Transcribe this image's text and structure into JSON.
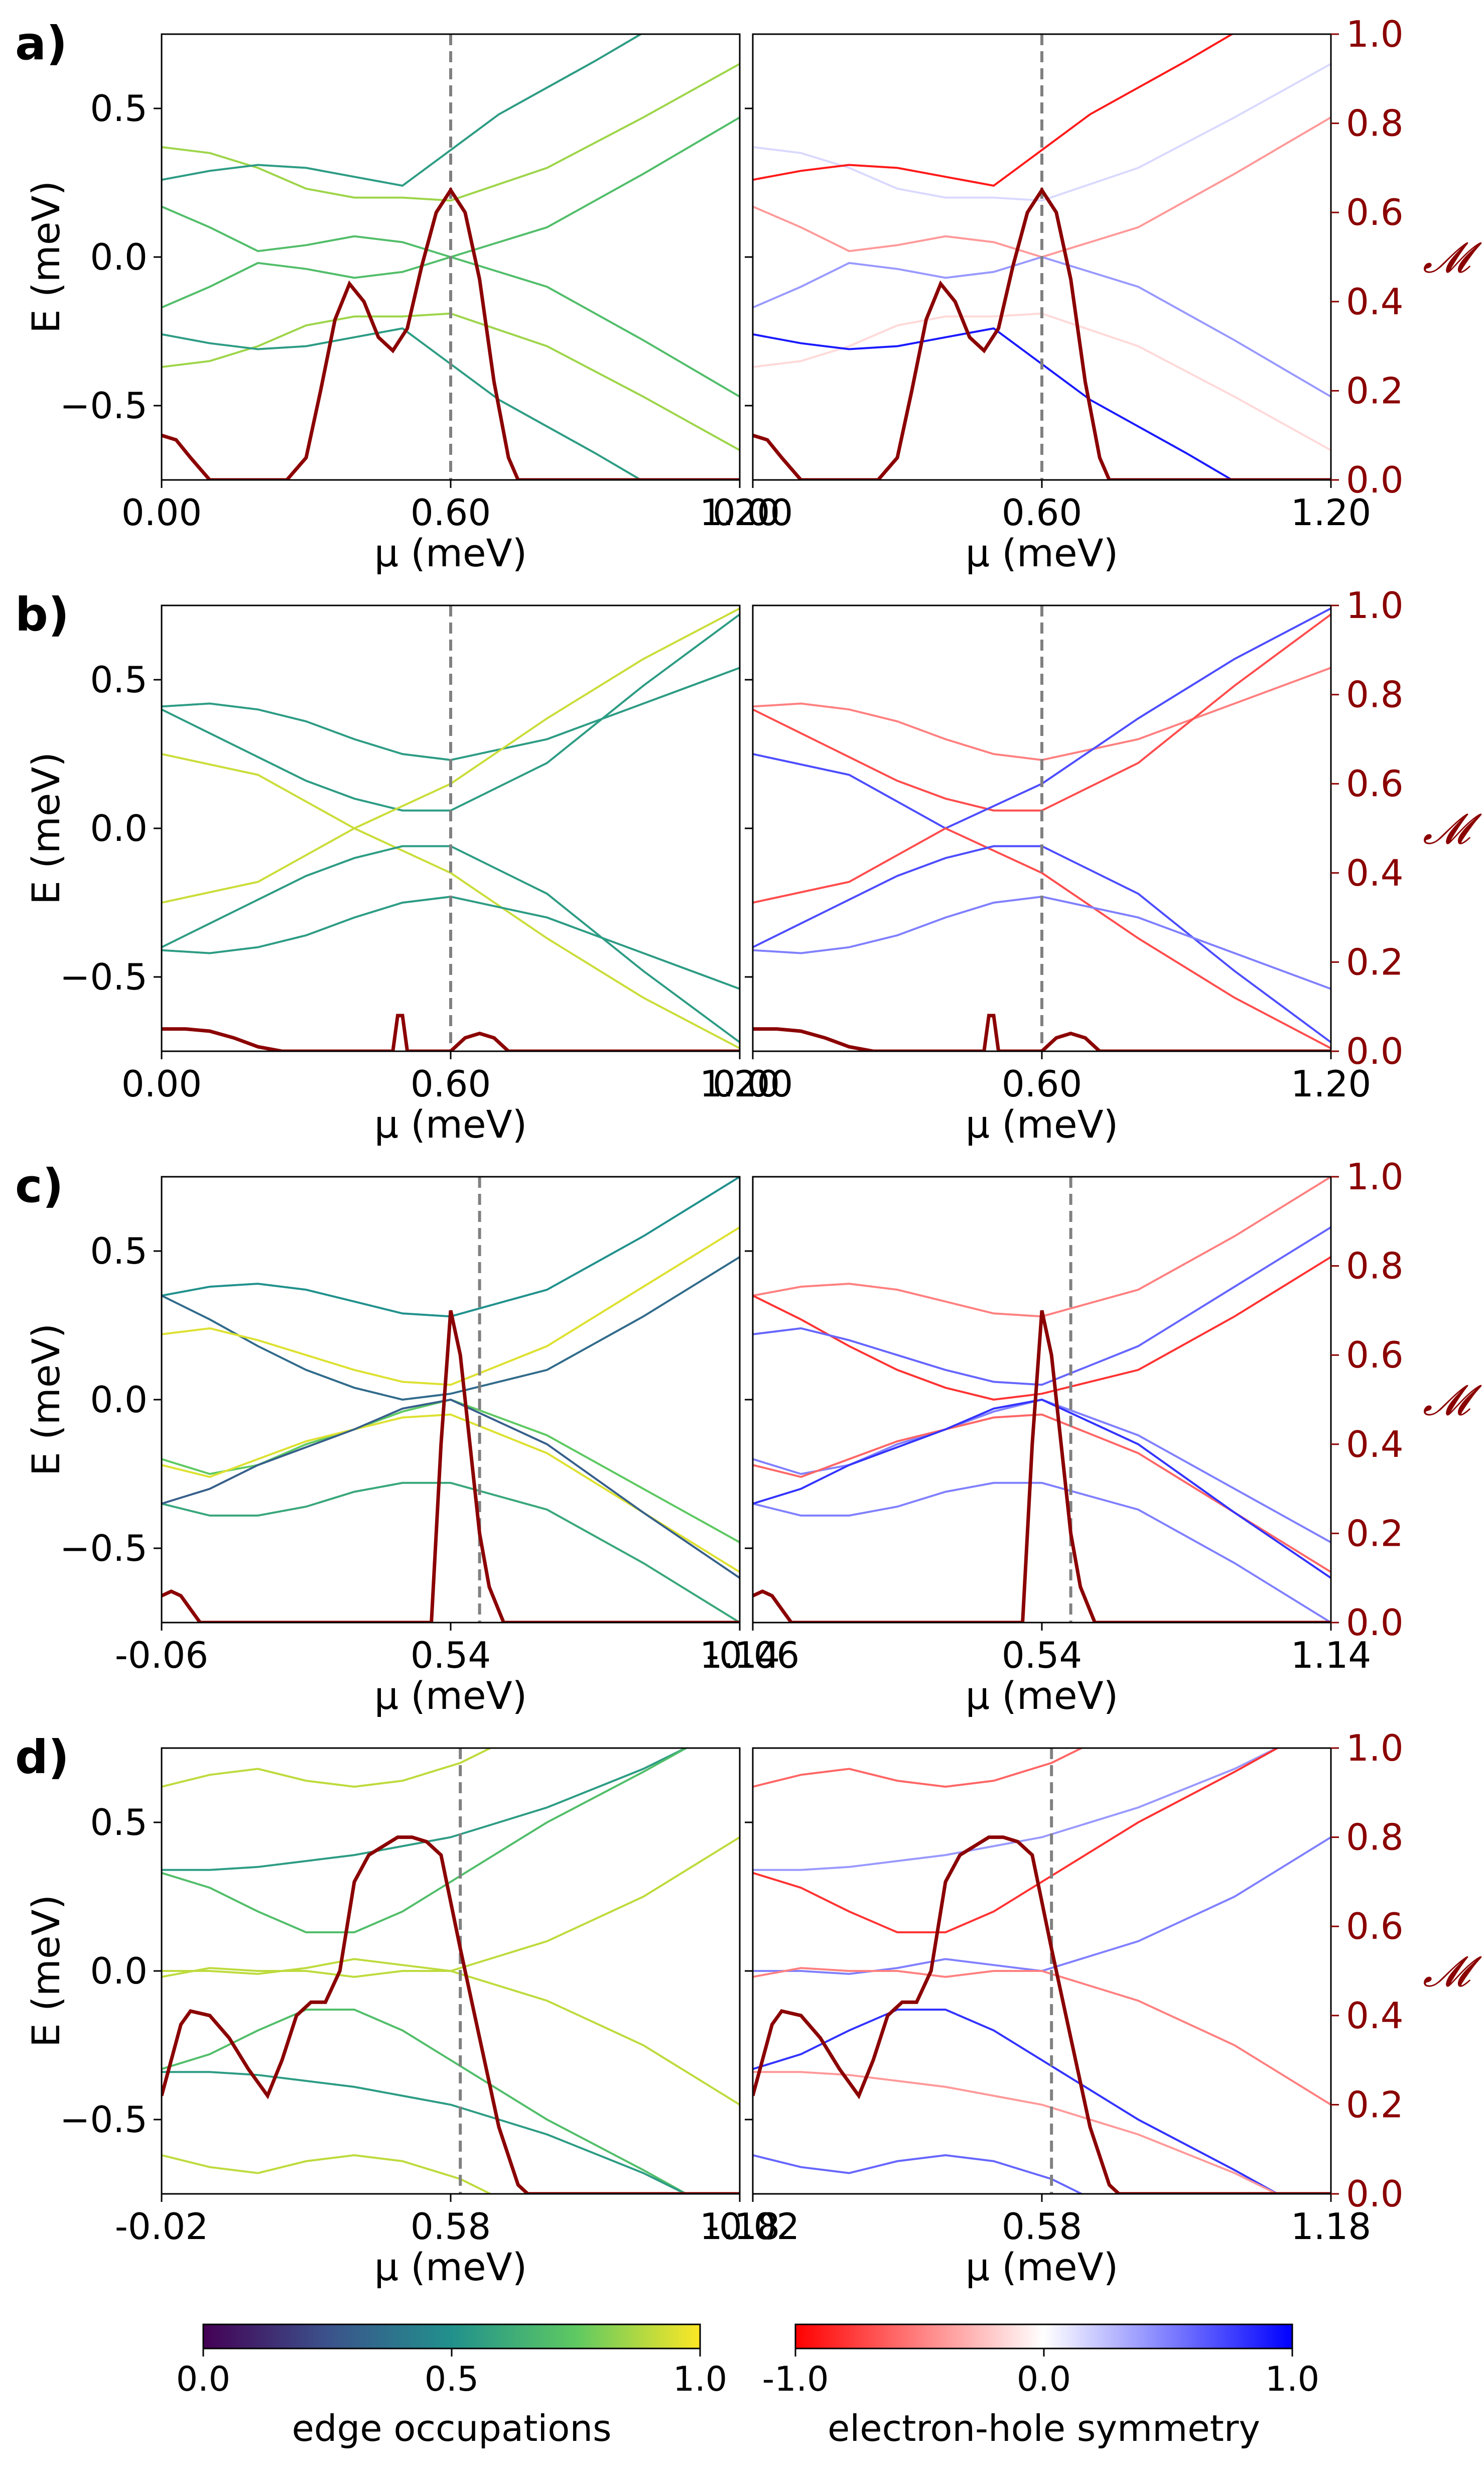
{
  "figure": {
    "right_axis_label": "𝓜",
    "colorbars": [
      {
        "label": "edge occupations",
        "ticks": [
          "0.0",
          "0.5",
          "1.0"
        ],
        "range": [
          0,
          1
        ],
        "colormap": [
          "#440154",
          "#3b528b",
          "#21918c",
          "#5ec962",
          "#fde725"
        ]
      },
      {
        "label": "electron-hole symmetry",
        "ticks": [
          "-1.0",
          "0.0",
          "1.0"
        ],
        "range": [
          -1,
          1
        ],
        "colormap": [
          "#ff0000",
          "#ffffff",
          "#0000ff"
        ]
      }
    ],
    "colors": {
      "majorana": "#8b0000",
      "axis_right": "#8b0000",
      "dashed": "#808080"
    }
  },
  "chart_data": [
    {
      "panel": "a)",
      "type": "line",
      "xlabel": "μ (meV)",
      "ylabel": "E (meV)",
      "y2label": "𝓜",
      "xlim": [
        0.0,
        1.2
      ],
      "ylim": [
        -0.75,
        0.75
      ],
      "y2lim": [
        0.0,
        1.0
      ],
      "xticks": [
        "0.00",
        "0.60",
        "1.20"
      ],
      "yticks": [
        "0.5",
        "0.0",
        "−0.5"
      ],
      "y2ticks": [
        "1.0",
        "0.8",
        "0.6",
        "0.4",
        "0.2",
        "0.0"
      ],
      "vline_x": 0.6,
      "bands": [
        {
          "x": [
            0,
            0.1,
            0.2,
            0.3,
            0.4,
            0.5,
            0.6,
            0.8,
            1.0,
            1.2
          ],
          "y": [
            0.37,
            0.35,
            0.3,
            0.23,
            0.2,
            0.2,
            0.19,
            0.3,
            0.47,
            0.65
          ],
          "occ": 0.85,
          "eh": 0.15
        },
        {
          "x": [
            0,
            0.1,
            0.2,
            0.3,
            0.4,
            0.5,
            0.6,
            0.7,
            0.9,
            1.1
          ],
          "y": [
            0.26,
            0.29,
            0.31,
            0.3,
            0.27,
            0.24,
            0.36,
            0.48,
            0.66,
            0.85
          ],
          "occ": 0.55,
          "eh": -0.9
        },
        {
          "x": [
            0,
            0.1,
            0.2,
            0.3,
            0.4,
            0.5,
            0.6,
            0.8,
            1.0,
            1.2
          ],
          "y": [
            0.17,
            0.1,
            0.02,
            0.04,
            0.07,
            0.05,
            0.0,
            0.1,
            0.28,
            0.47
          ],
          "occ": 0.7,
          "eh": -0.4
        },
        {
          "x": [
            0,
            0.1,
            0.2,
            0.3,
            0.4,
            0.5,
            0.6,
            0.8,
            1.0,
            1.2
          ],
          "y": [
            -0.17,
            -0.1,
            -0.02,
            -0.04,
            -0.07,
            -0.05,
            0.0,
            -0.1,
            -0.28,
            -0.47
          ],
          "occ": 0.7,
          "eh": 0.4
        },
        {
          "x": [
            0,
            0.1,
            0.2,
            0.3,
            0.4,
            0.5,
            0.6,
            0.8,
            1.0,
            1.2
          ],
          "y": [
            -0.37,
            -0.35,
            -0.3,
            -0.23,
            -0.2,
            -0.2,
            -0.19,
            -0.3,
            -0.47,
            -0.65
          ],
          "occ": 0.85,
          "eh": -0.15
        },
        {
          "x": [
            0,
            0.1,
            0.2,
            0.3,
            0.4,
            0.5,
            0.6,
            0.7,
            0.9,
            1.1
          ],
          "y": [
            -0.26,
            -0.29,
            -0.31,
            -0.3,
            -0.27,
            -0.24,
            -0.36,
            -0.48,
            -0.66,
            -0.85
          ],
          "occ": 0.55,
          "eh": 0.9
        }
      ],
      "majorana": {
        "x": [
          0,
          0.03,
          0.06,
          0.1,
          0.26,
          0.3,
          0.33,
          0.36,
          0.39,
          0.42,
          0.45,
          0.48,
          0.51,
          0.54,
          0.57,
          0.6,
          0.63,
          0.66,
          0.69,
          0.72,
          0.74,
          1.2
        ],
        "y": [
          0.1,
          0.09,
          0.05,
          0.0,
          0.0,
          0.05,
          0.2,
          0.36,
          0.44,
          0.4,
          0.32,
          0.29,
          0.34,
          0.48,
          0.6,
          0.65,
          0.6,
          0.45,
          0.22,
          0.05,
          0.0,
          0.0
        ]
      }
    },
    {
      "panel": "b)",
      "type": "line",
      "xlabel": "μ (meV)",
      "ylabel": "E (meV)",
      "y2label": "𝓜",
      "xlim": [
        0.0,
        1.2
      ],
      "ylim": [
        -0.75,
        0.75
      ],
      "y2lim": [
        0.0,
        1.0
      ],
      "xticks": [
        "0.00",
        "0.60",
        "1.20"
      ],
      "yticks": [
        "0.5",
        "0.0",
        "−0.5"
      ],
      "y2ticks": [
        "1.0",
        "0.8",
        "0.6",
        "0.4",
        "0.2",
        "0.0"
      ],
      "vline_x": 0.6,
      "bands": [
        {
          "x": [
            0,
            0.1,
            0.2,
            0.3,
            0.4,
            0.5,
            0.6,
            0.8,
            1.0,
            1.2
          ],
          "y": [
            0.41,
            0.42,
            0.4,
            0.36,
            0.3,
            0.25,
            0.23,
            0.3,
            0.42,
            0.54
          ],
          "occ": 0.55,
          "eh": -0.5
        },
        {
          "x": [
            0,
            0.1,
            0.2,
            0.3,
            0.4,
            0.5,
            0.6,
            0.8,
            1.0,
            1.2
          ],
          "y": [
            0.4,
            0.32,
            0.24,
            0.16,
            0.1,
            0.06,
            0.06,
            0.22,
            0.48,
            0.72
          ],
          "occ": 0.55,
          "eh": -0.7
        },
        {
          "x": [
            0,
            0.2,
            0.4,
            0.6,
            0.8,
            1.0,
            1.2
          ],
          "y": [
            0.25,
            0.18,
            0.0,
            0.15,
            0.37,
            0.57,
            0.74
          ],
          "occ": 0.92,
          "eh": 0.7
        },
        {
          "x": [
            0,
            0.2,
            0.4,
            0.6,
            0.8,
            1.0,
            1.2
          ],
          "y": [
            -0.25,
            -0.18,
            0.0,
            -0.15,
            -0.37,
            -0.57,
            -0.74
          ],
          "occ": 0.92,
          "eh": -0.7
        },
        {
          "x": [
            0,
            0.1,
            0.2,
            0.3,
            0.4,
            0.5,
            0.6,
            0.8,
            1.0,
            1.2
          ],
          "y": [
            -0.4,
            -0.32,
            -0.24,
            -0.16,
            -0.1,
            -0.06,
            -0.06,
            -0.22,
            -0.48,
            -0.72
          ],
          "occ": 0.55,
          "eh": 0.7
        },
        {
          "x": [
            0,
            0.1,
            0.2,
            0.3,
            0.4,
            0.5,
            0.6,
            0.8,
            1.0,
            1.2
          ],
          "y": [
            -0.41,
            -0.42,
            -0.4,
            -0.36,
            -0.3,
            -0.25,
            -0.23,
            -0.3,
            -0.42,
            -0.54
          ],
          "occ": 0.55,
          "eh": 0.5
        }
      ],
      "majorana": {
        "x": [
          0,
          0.05,
          0.1,
          0.15,
          0.2,
          0.25,
          0.48,
          0.49,
          0.5,
          0.51,
          0.52,
          0.6,
          0.63,
          0.66,
          0.69,
          0.72,
          1.2
        ],
        "y": [
          0.05,
          0.05,
          0.045,
          0.03,
          0.01,
          0.0,
          0.0,
          0.08,
          0.08,
          0.0,
          0.0,
          0.0,
          0.03,
          0.04,
          0.03,
          0.0,
          0.0
        ]
      }
    },
    {
      "panel": "c)",
      "type": "line",
      "xlabel": "μ (meV)",
      "ylabel": "E (meV)",
      "y2label": "𝓜",
      "xlim": [
        -0.06,
        1.14
      ],
      "ylim": [
        -0.75,
        0.75
      ],
      "y2lim": [
        0.0,
        1.0
      ],
      "xticks": [
        "-0.06",
        "0.54",
        "1.14"
      ],
      "yticks": [
        "0.5",
        "0.0",
        "−0.5"
      ],
      "y2ticks": [
        "1.0",
        "0.8",
        "0.6",
        "0.4",
        "0.2",
        "0.0"
      ],
      "vline_x": 0.6,
      "bands": [
        {
          "x": [
            -0.06,
            0.04,
            0.14,
            0.24,
            0.34,
            0.44,
            0.54,
            0.74,
            0.94,
            1.14
          ],
          "y": [
            0.35,
            0.38,
            0.39,
            0.37,
            0.33,
            0.29,
            0.28,
            0.37,
            0.55,
            0.75
          ],
          "occ": 0.5,
          "eh": -0.5
        },
        {
          "x": [
            -0.06,
            0.04,
            0.14,
            0.24,
            0.34,
            0.44,
            0.54,
            0.74,
            0.94,
            1.14
          ],
          "y": [
            0.35,
            0.27,
            0.18,
            0.1,
            0.04,
            0.0,
            0.02,
            0.1,
            0.28,
            0.48
          ],
          "occ": 0.35,
          "eh": -0.8
        },
        {
          "x": [
            -0.06,
            0.04,
            0.14,
            0.24,
            0.34,
            0.44,
            0.54,
            0.74,
            0.94,
            1.14
          ],
          "y": [
            0.22,
            0.24,
            0.2,
            0.15,
            0.1,
            0.06,
            0.05,
            0.18,
            0.38,
            0.58
          ],
          "occ": 0.95,
          "eh": 0.6
        },
        {
          "x": [
            -0.06,
            0.04,
            0.14,
            0.24,
            0.34,
            0.44,
            0.54,
            0.74,
            0.94,
            1.14
          ],
          "y": [
            -0.2,
            -0.25,
            -0.22,
            -0.15,
            -0.1,
            -0.04,
            0.0,
            -0.12,
            -0.3,
            -0.48
          ],
          "occ": 0.75,
          "eh": 0.5
        },
        {
          "x": [
            -0.06,
            0.04,
            0.14,
            0.24,
            0.34,
            0.44,
            0.54,
            0.74,
            0.94,
            1.14
          ],
          "y": [
            -0.22,
            -0.26,
            -0.2,
            -0.14,
            -0.1,
            -0.06,
            -0.05,
            -0.18,
            -0.38,
            -0.58
          ],
          "occ": 0.95,
          "eh": -0.6
        },
        {
          "x": [
            -0.06,
            0.04,
            0.14,
            0.24,
            0.34,
            0.44,
            0.54,
            0.74,
            0.94,
            1.14
          ],
          "y": [
            -0.35,
            -0.39,
            -0.39,
            -0.36,
            -0.31,
            -0.28,
            -0.28,
            -0.37,
            -0.55,
            -0.75
          ],
          "occ": 0.6,
          "eh": 0.5
        },
        {
          "x": [
            -0.06,
            0.04,
            0.14,
            0.24,
            0.34,
            0.44,
            0.54,
            0.74,
            0.94,
            1.14
          ],
          "y": [
            -0.35,
            -0.3,
            -0.22,
            -0.16,
            -0.1,
            -0.03,
            0.0,
            -0.15,
            -0.38,
            -0.6
          ],
          "occ": 0.3,
          "eh": 0.8
        }
      ],
      "majorana": {
        "x": [
          -0.06,
          -0.04,
          -0.02,
          0.0,
          0.02,
          0.04,
          0.5,
          0.52,
          0.54,
          0.56,
          0.58,
          0.6,
          0.62,
          0.65,
          1.14
        ],
        "y": [
          0.06,
          0.07,
          0.06,
          0.03,
          0.0,
          0.0,
          0.0,
          0.4,
          0.7,
          0.6,
          0.4,
          0.2,
          0.08,
          0.0,
          0.0
        ]
      }
    },
    {
      "panel": "d)",
      "type": "line",
      "xlabel": "μ (meV)",
      "ylabel": "E (meV)",
      "y2label": "𝓜",
      "xlim": [
        -0.02,
        1.18
      ],
      "ylim": [
        -0.75,
        0.75
      ],
      "y2lim": [
        0.0,
        1.0
      ],
      "xticks": [
        "-0.02",
        "0.58",
        "1.18"
      ],
      "yticks": [
        "0.5",
        "0.0",
        "−0.5"
      ],
      "y2ticks": [
        "1.0",
        "0.8",
        "0.6",
        "0.4",
        "0.2",
        "0.0"
      ],
      "vline_x": 0.6,
      "bands": [
        {
          "x": [
            -0.02,
            0.08,
            0.18,
            0.28,
            0.38,
            0.48,
            0.6,
            0.7
          ],
          "y": [
            0.62,
            0.66,
            0.68,
            0.64,
            0.62,
            0.64,
            0.7,
            0.78
          ],
          "occ": 0.9,
          "eh": -0.6
        },
        {
          "x": [
            -0.02,
            0.08,
            0.18,
            0.28,
            0.38,
            0.48,
            0.58,
            0.78,
            0.98,
            1.08
          ],
          "y": [
            0.34,
            0.34,
            0.35,
            0.37,
            0.39,
            0.42,
            0.45,
            0.55,
            0.68,
            0.76
          ],
          "occ": 0.55,
          "eh": 0.4
        },
        {
          "x": [
            -0.02,
            0.08,
            0.18,
            0.28,
            0.38,
            0.48,
            0.58,
            0.78,
            0.98,
            1.08
          ],
          "y": [
            0.33,
            0.28,
            0.2,
            0.13,
            0.13,
            0.2,
            0.3,
            0.5,
            0.67,
            0.76
          ],
          "occ": 0.7,
          "eh": -0.8
        },
        {
          "x": [
            -0.02,
            0.08,
            0.18,
            0.28,
            0.38,
            0.48,
            0.58,
            0.78,
            0.98,
            1.18
          ],
          "y": [
            0.0,
            0.0,
            -0.01,
            0.01,
            0.04,
            0.02,
            0.0,
            0.1,
            0.25,
            0.45
          ],
          "occ": 0.9,
          "eh": 0.5
        },
        {
          "x": [
            -0.02,
            0.08,
            0.18,
            0.28,
            0.38,
            0.48,
            0.58,
            0.78,
            0.98,
            1.18
          ],
          "y": [
            -0.02,
            0.01,
            0.0,
            0.0,
            -0.02,
            0.0,
            0.0,
            -0.1,
            -0.25,
            -0.45
          ],
          "occ": 0.9,
          "eh": -0.5
        },
        {
          "x": [
            -0.02,
            0.08,
            0.18,
            0.28,
            0.38,
            0.48,
            0.58,
            0.78,
            0.98,
            1.08
          ],
          "y": [
            -0.33,
            -0.28,
            -0.2,
            -0.13,
            -0.13,
            -0.2,
            -0.3,
            -0.5,
            -0.67,
            -0.76
          ],
          "occ": 0.7,
          "eh": 0.8
        },
        {
          "x": [
            -0.02,
            0.08,
            0.18,
            0.28,
            0.38,
            0.48,
            0.58,
            0.78,
            0.98,
            1.08
          ],
          "y": [
            -0.34,
            -0.34,
            -0.35,
            -0.37,
            -0.39,
            -0.42,
            -0.45,
            -0.55,
            -0.68,
            -0.76
          ],
          "occ": 0.55,
          "eh": -0.4
        },
        {
          "x": [
            -0.02,
            0.08,
            0.18,
            0.28,
            0.38,
            0.48,
            0.6,
            0.7
          ],
          "y": [
            -0.62,
            -0.66,
            -0.68,
            -0.64,
            -0.62,
            -0.64,
            -0.7,
            -0.78
          ],
          "occ": 0.9,
          "eh": 0.6
        }
      ],
      "majorana": {
        "x": [
          -0.02,
          0.0,
          0.02,
          0.04,
          0.08,
          0.12,
          0.16,
          0.2,
          0.23,
          0.26,
          0.29,
          0.32,
          0.35,
          0.38,
          0.41,
          0.44,
          0.47,
          0.5,
          0.53,
          0.56,
          0.6,
          0.64,
          0.68,
          0.72,
          0.74,
          1.18
        ],
        "y": [
          0.22,
          0.3,
          0.38,
          0.41,
          0.4,
          0.35,
          0.28,
          0.22,
          0.3,
          0.4,
          0.43,
          0.43,
          0.5,
          0.7,
          0.76,
          0.78,
          0.8,
          0.8,
          0.79,
          0.76,
          0.55,
          0.35,
          0.15,
          0.02,
          0.0,
          0.0
        ]
      }
    }
  ]
}
